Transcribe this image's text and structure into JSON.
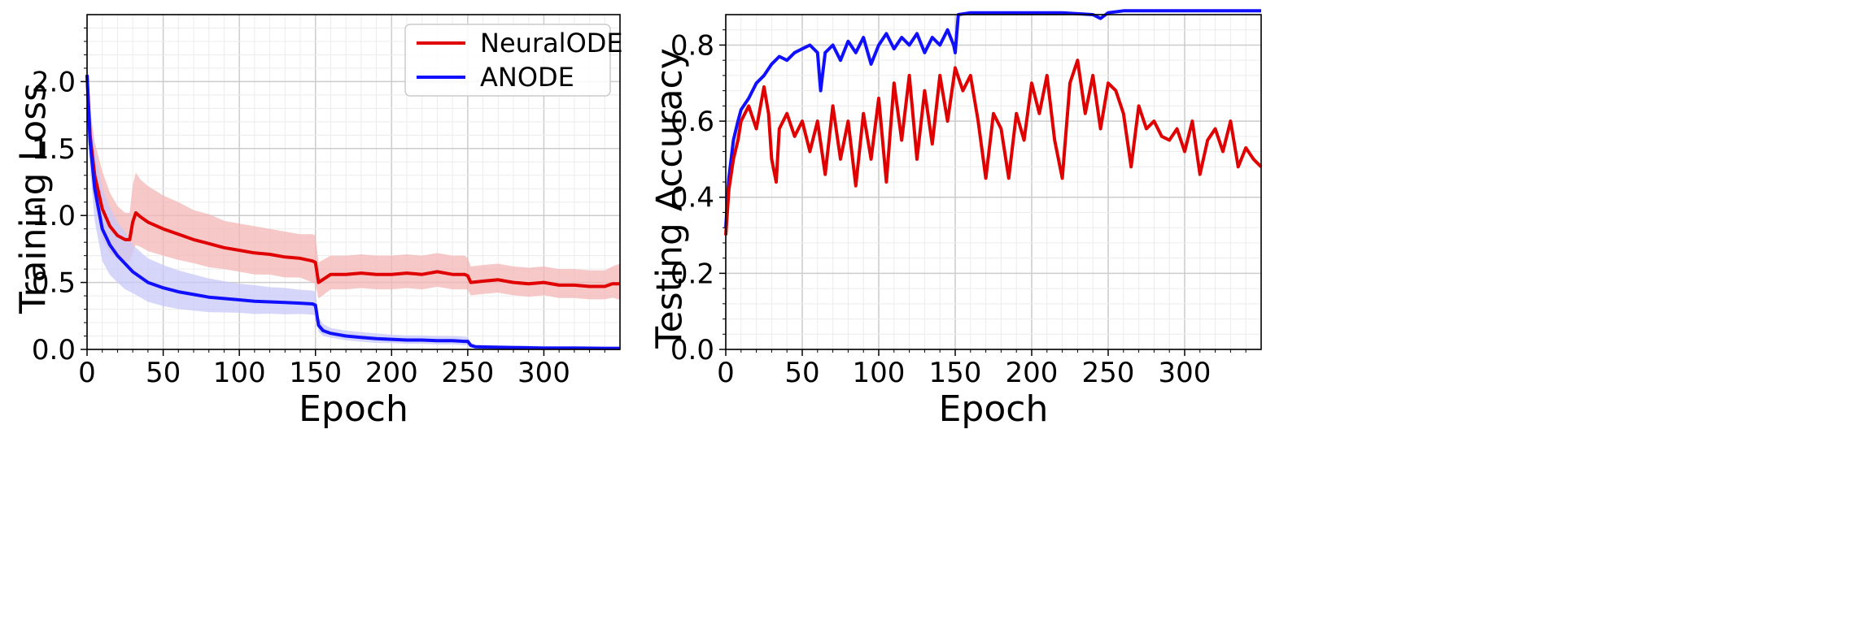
{
  "chart_data": [
    {
      "type": "line",
      "title": "",
      "xlabel": "Epoch",
      "ylabel": "Training Loss",
      "xlim": [
        0,
        350
      ],
      "ylim": [
        0,
        2.5
      ],
      "xticks": [
        "0",
        "50",
        "100",
        "150",
        "200",
        "250",
        "300"
      ],
      "yticks": [
        "0.0",
        "0.5",
        "1.0",
        "1.5",
        "2.0"
      ],
      "grid": true,
      "legend": "top-right",
      "series": [
        {
          "name": "NeuralODE",
          "color": "#e00000",
          "band_color": "#f4b6b6",
          "x": [
            0,
            2,
            5,
            10,
            15,
            20,
            25,
            28,
            30,
            32,
            35,
            40,
            50,
            60,
            70,
            80,
            90,
            100,
            110,
            120,
            130,
            140,
            148,
            150,
            152,
            160,
            170,
            180,
            190,
            200,
            210,
            220,
            230,
            240,
            248,
            250,
            252,
            260,
            270,
            280,
            290,
            300,
            310,
            320,
            330,
            340,
            345,
            350
          ],
          "values": [
            2.05,
            1.6,
            1.3,
            1.05,
            0.92,
            0.85,
            0.82,
            0.82,
            0.95,
            1.02,
            0.99,
            0.95,
            0.9,
            0.86,
            0.82,
            0.79,
            0.76,
            0.74,
            0.72,
            0.71,
            0.69,
            0.68,
            0.66,
            0.65,
            0.5,
            0.56,
            0.56,
            0.57,
            0.56,
            0.56,
            0.57,
            0.56,
            0.58,
            0.56,
            0.56,
            0.55,
            0.5,
            0.51,
            0.52,
            0.5,
            0.49,
            0.5,
            0.48,
            0.48,
            0.47,
            0.47,
            0.49,
            0.49
          ],
          "band_halfwidth": [
            0.1,
            0.2,
            0.25,
            0.28,
            0.25,
            0.22,
            0.2,
            0.2,
            0.28,
            0.3,
            0.28,
            0.27,
            0.25,
            0.24,
            0.22,
            0.22,
            0.2,
            0.2,
            0.2,
            0.19,
            0.19,
            0.18,
            0.2,
            0.2,
            0.15,
            0.14,
            0.14,
            0.14,
            0.14,
            0.14,
            0.14,
            0.14,
            0.14,
            0.14,
            0.14,
            0.13,
            0.12,
            0.12,
            0.12,
            0.12,
            0.12,
            0.12,
            0.12,
            0.12,
            0.12,
            0.12,
            0.13,
            0.15
          ]
        },
        {
          "name": "ANODE",
          "color": "#1010ff",
          "band_color": "#c8c8f8",
          "x": [
            0,
            2,
            5,
            10,
            15,
            20,
            25,
            30,
            35,
            40,
            50,
            60,
            70,
            80,
            90,
            100,
            110,
            120,
            130,
            140,
            148,
            150,
            152,
            155,
            160,
            170,
            180,
            190,
            200,
            210,
            220,
            230,
            240,
            248,
            250,
            252,
            255,
            260,
            270,
            280,
            290,
            300,
            320,
            340,
            350
          ],
          "values": [
            2.05,
            1.55,
            1.2,
            0.9,
            0.78,
            0.7,
            0.64,
            0.58,
            0.54,
            0.5,
            0.46,
            0.43,
            0.41,
            0.39,
            0.38,
            0.37,
            0.36,
            0.355,
            0.35,
            0.345,
            0.34,
            0.33,
            0.18,
            0.14,
            0.12,
            0.1,
            0.09,
            0.08,
            0.075,
            0.07,
            0.07,
            0.065,
            0.065,
            0.06,
            0.06,
            0.03,
            0.02,
            0.018,
            0.016,
            0.014,
            0.012,
            0.01,
            0.01,
            0.008,
            0.008
          ],
          "band_halfwidth": [
            0.1,
            0.25,
            0.3,
            0.3,
            0.28,
            0.25,
            0.24,
            0.2,
            0.19,
            0.18,
            0.17,
            0.16,
            0.15,
            0.14,
            0.13,
            0.12,
            0.12,
            0.11,
            0.11,
            0.1,
            0.1,
            0.1,
            0.06,
            0.05,
            0.04,
            0.04,
            0.04,
            0.04,
            0.035,
            0.035,
            0.035,
            0.035,
            0.035,
            0.035,
            0.03,
            0.02,
            0.015,
            0.015,
            0.015,
            0.015,
            0.015,
            0.015,
            0.015,
            0.015,
            0.015
          ]
        }
      ]
    },
    {
      "type": "line",
      "title": "",
      "xlabel": "Epoch",
      "ylabel": "Testing Accuracy",
      "xlim": [
        0,
        350
      ],
      "ylim": [
        0,
        0.88
      ],
      "xticks": [
        "0",
        "50",
        "100",
        "150",
        "200",
        "250",
        "300"
      ],
      "yticks": [
        "0.0",
        "0.2",
        "0.4",
        "0.6",
        "0.8"
      ],
      "grid": true,
      "series": [
        {
          "name": "",
          "color": "#1010ff",
          "x": [
            0,
            2,
            5,
            8,
            10,
            15,
            20,
            25,
            30,
            35,
            40,
            45,
            50,
            55,
            60,
            62,
            65,
            70,
            75,
            80,
            85,
            90,
            95,
            100,
            105,
            110,
            115,
            120,
            125,
            130,
            135,
            140,
            145,
            149,
            150,
            152,
            160,
            180,
            200,
            220,
            240,
            245,
            250,
            260,
            280,
            300,
            320,
            340,
            350
          ],
          "values": [
            0.32,
            0.45,
            0.55,
            0.6,
            0.63,
            0.66,
            0.7,
            0.72,
            0.75,
            0.77,
            0.76,
            0.78,
            0.79,
            0.8,
            0.78,
            0.68,
            0.78,
            0.8,
            0.76,
            0.81,
            0.78,
            0.82,
            0.75,
            0.8,
            0.83,
            0.79,
            0.82,
            0.8,
            0.83,
            0.78,
            0.82,
            0.8,
            0.84,
            0.8,
            0.78,
            0.88,
            0.885,
            0.885,
            0.885,
            0.885,
            0.88,
            0.87,
            0.885,
            0.89,
            0.89,
            0.89,
            0.89,
            0.89,
            0.89
          ]
        },
        {
          "name": "",
          "color": "#e00000",
          "x": [
            0,
            2,
            5,
            8,
            10,
            15,
            20,
            25,
            28,
            30,
            33,
            35,
            40,
            45,
            50,
            55,
            60,
            65,
            70,
            75,
            80,
            85,
            90,
            95,
            100,
            105,
            110,
            115,
            120,
            125,
            130,
            135,
            140,
            145,
            150,
            155,
            160,
            165,
            170,
            175,
            180,
            185,
            190,
            195,
            200,
            205,
            210,
            215,
            220,
            225,
            230,
            235,
            240,
            245,
            250,
            255,
            260,
            265,
            270,
            275,
            280,
            285,
            290,
            295,
            300,
            305,
            310,
            315,
            320,
            325,
            330,
            335,
            340,
            345,
            350
          ],
          "values": [
            0.3,
            0.42,
            0.5,
            0.55,
            0.6,
            0.64,
            0.58,
            0.69,
            0.62,
            0.5,
            0.44,
            0.58,
            0.62,
            0.56,
            0.6,
            0.52,
            0.6,
            0.46,
            0.64,
            0.5,
            0.6,
            0.43,
            0.62,
            0.5,
            0.66,
            0.44,
            0.7,
            0.55,
            0.72,
            0.5,
            0.68,
            0.54,
            0.72,
            0.6,
            0.74,
            0.68,
            0.72,
            0.6,
            0.45,
            0.62,
            0.58,
            0.45,
            0.62,
            0.55,
            0.7,
            0.62,
            0.72,
            0.55,
            0.45,
            0.7,
            0.76,
            0.62,
            0.72,
            0.58,
            0.7,
            0.68,
            0.62,
            0.48,
            0.64,
            0.58,
            0.6,
            0.56,
            0.55,
            0.58,
            0.52,
            0.6,
            0.46,
            0.55,
            0.58,
            0.52,
            0.6,
            0.48,
            0.53,
            0.5,
            0.48
          ]
        }
      ]
    }
  ]
}
